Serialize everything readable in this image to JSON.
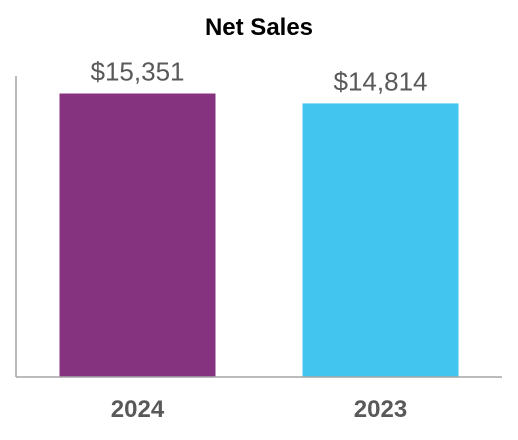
{
  "chart_data": {
    "type": "bar",
    "title": "Net Sales",
    "xlabel": "",
    "ylabel": "",
    "categories": [
      "2024",
      "2023"
    ],
    "values": [
      15351,
      14814
    ],
    "value_labels": [
      "$15,351",
      "$14,814"
    ],
    "colors": [
      "#85327F",
      "#42C6F0"
    ],
    "ylim": [
      0,
      16300
    ],
    "grid": false,
    "legend": "none"
  }
}
